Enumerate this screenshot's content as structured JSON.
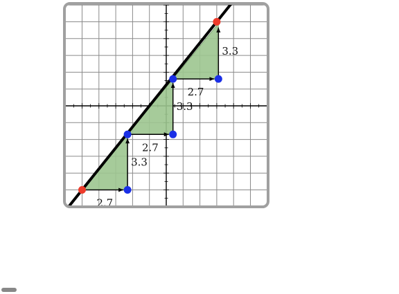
{
  "colors": {
    "grid": "#8a8a8a",
    "axis": "#000000",
    "line": "#000000",
    "triangle_fill": "#9cc58f",
    "triangle_stroke": "#6f9a63",
    "start_point": "#ee3b2b",
    "step_point": "#1a2fe6",
    "arrow": "#000000"
  },
  "chart_data": {
    "type": "diagram",
    "description_source": "slope triangles along a line on a coordinate grid",
    "xlim": [
      -6,
      6
    ],
    "ylim": [
      -6,
      6
    ],
    "grid": true,
    "line": {
      "through": [
        [
          -5,
          -5
        ],
        [
          3,
          5
        ]
      ],
      "slope": 1.25
    },
    "start_point": [
      -5,
      -5
    ],
    "end_point": [
      3,
      5
    ],
    "run_label": "2.7",
    "rise_label": "3.3",
    "steps": [
      {
        "from": [
          -5,
          -5
        ],
        "corner": [
          -2.3,
          -5
        ],
        "to": [
          -2.3,
          -1.7
        ],
        "run_label": "2.7",
        "rise_label": "3.3"
      },
      {
        "from": [
          -2.3,
          -1.7
        ],
        "corner": [
          0.4,
          -1.7
        ],
        "to": [
          0.4,
          1.6
        ],
        "run_label": "2.7",
        "rise_label": "3.3"
      },
      {
        "from": [
          0.4,
          1.6
        ],
        "corner": [
          3.1,
          1.6
        ],
        "to": [
          3.1,
          4.9
        ],
        "run_label": "2.7",
        "rise_label": "3.3"
      }
    ]
  }
}
